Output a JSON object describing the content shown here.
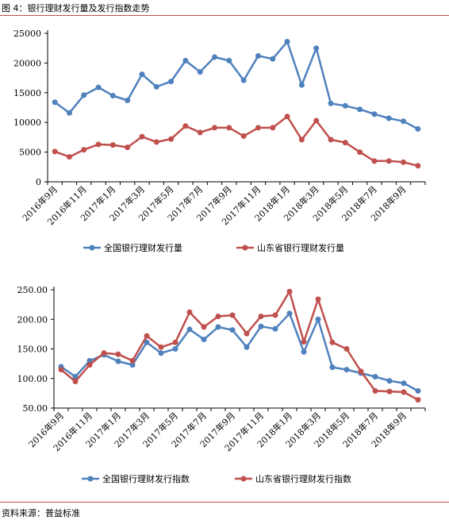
{
  "figure_title": "图 4：银行理财发行量及发行指数走势",
  "source_note": "资料来源：普益标准",
  "chart_data": [
    {
      "type": "line",
      "categories": [
        "2016年9月",
        "2016年10月",
        "2016年11月",
        "2016年12月",
        "2017年1月",
        "2017年2月",
        "2017年3月",
        "2017年4月",
        "2017年5月",
        "2017年6月",
        "2017年7月",
        "2017年8月",
        "2017年9月",
        "2017年10月",
        "2017年11月",
        "2017年12月",
        "2018年1月",
        "2018年2月",
        "2018年3月",
        "2018年4月",
        "2018年5月",
        "2018年6月",
        "2018年7月",
        "2018年8月",
        "2018年9月",
        "2018年10月"
      ],
      "tick_labels": [
        "2016年9月",
        "",
        "2016年11月",
        "",
        "2017年1月",
        "",
        "2017年3月",
        "",
        "2017年5月",
        "",
        "2017年7月",
        "",
        "2017年9月",
        "",
        "2017年11月",
        "",
        "2018年1月",
        "",
        "2018年3月",
        "",
        "2018年5月",
        "",
        "2018年7月",
        "",
        "2018年9月",
        ""
      ],
      "series": [
        {
          "name": "全国银行理财发行量",
          "color": "#4f81bd",
          "values": [
            13400,
            11600,
            14600,
            15900,
            14500,
            13700,
            18100,
            16000,
            16900,
            20400,
            18500,
            21000,
            20400,
            17100,
            21200,
            20700,
            23600,
            16300,
            22500,
            13200,
            12800,
            12200,
            11400,
            10700,
            10200,
            8900
          ]
        },
        {
          "name": "山东省银行理财发行量",
          "color": "#c0504d",
          "values": [
            5100,
            4200,
            5400,
            6300,
            6200,
            5800,
            7600,
            6700,
            7200,
            9400,
            8300,
            9100,
            9100,
            7700,
            9100,
            9100,
            11000,
            7100,
            10300,
            7100,
            6600,
            5000,
            3500,
            3500,
            3300,
            2700
          ]
        }
      ],
      "y_ticks": [
        "0",
        "5000",
        "10000",
        "15000",
        "20000",
        "25000"
      ],
      "ylim": [
        0,
        25000
      ],
      "legend_position": "bottom",
      "grid": false
    },
    {
      "type": "line",
      "categories": [
        "2016年9月",
        "2016年10月",
        "2016年11月",
        "2016年12月",
        "2017年1月",
        "2017年2月",
        "2017年3月",
        "2017年4月",
        "2017年5月",
        "2017年6月",
        "2017年7月",
        "2017年8月",
        "2017年9月",
        "2017年10月",
        "2017年11月",
        "2017年12月",
        "2018年1月",
        "2018年2月",
        "2018年3月",
        "2018年4月",
        "2018年5月",
        "2018年6月",
        "2018年7月",
        "2018年8月",
        "2018年9月",
        "2018年10月"
      ],
      "tick_labels": [
        "2016年9月",
        "",
        "2016年11月",
        "",
        "2017年1月",
        "",
        "2017年3月",
        "",
        "2017年5月",
        "",
        "2017年7月",
        "",
        "2017年9月",
        "",
        "2017年11月",
        "",
        "2018年1月",
        "",
        "2018年3月",
        "",
        "2018年5月",
        "",
        "2018年7月",
        "",
        "2018年9月",
        ""
      ],
      "series": [
        {
          "name": "全国银行理财发行指数",
          "color": "#4f81bd",
          "values": [
            120,
            103,
            130,
            140,
            129,
            123,
            161,
            143,
            150,
            183,
            166,
            187,
            182,
            153,
            188,
            184,
            210,
            145,
            200,
            119,
            115,
            109,
            103,
            96,
            92,
            79
          ]
        },
        {
          "name": "山东省银行理财发行指数",
          "color": "#c0504d",
          "values": [
            115,
            95,
            123,
            143,
            141,
            130,
            172,
            153,
            161,
            212,
            187,
            205,
            207,
            176,
            205,
            207,
            247,
            162,
            234,
            161,
            150,
            112,
            79,
            78,
            77,
            64
          ]
        }
      ],
      "y_ticks": [
        "50.00",
        "100.00",
        "150.00",
        "200.00",
        "250.00"
      ],
      "ylim": [
        50,
        250
      ],
      "legend_position": "bottom",
      "grid": false
    }
  ]
}
